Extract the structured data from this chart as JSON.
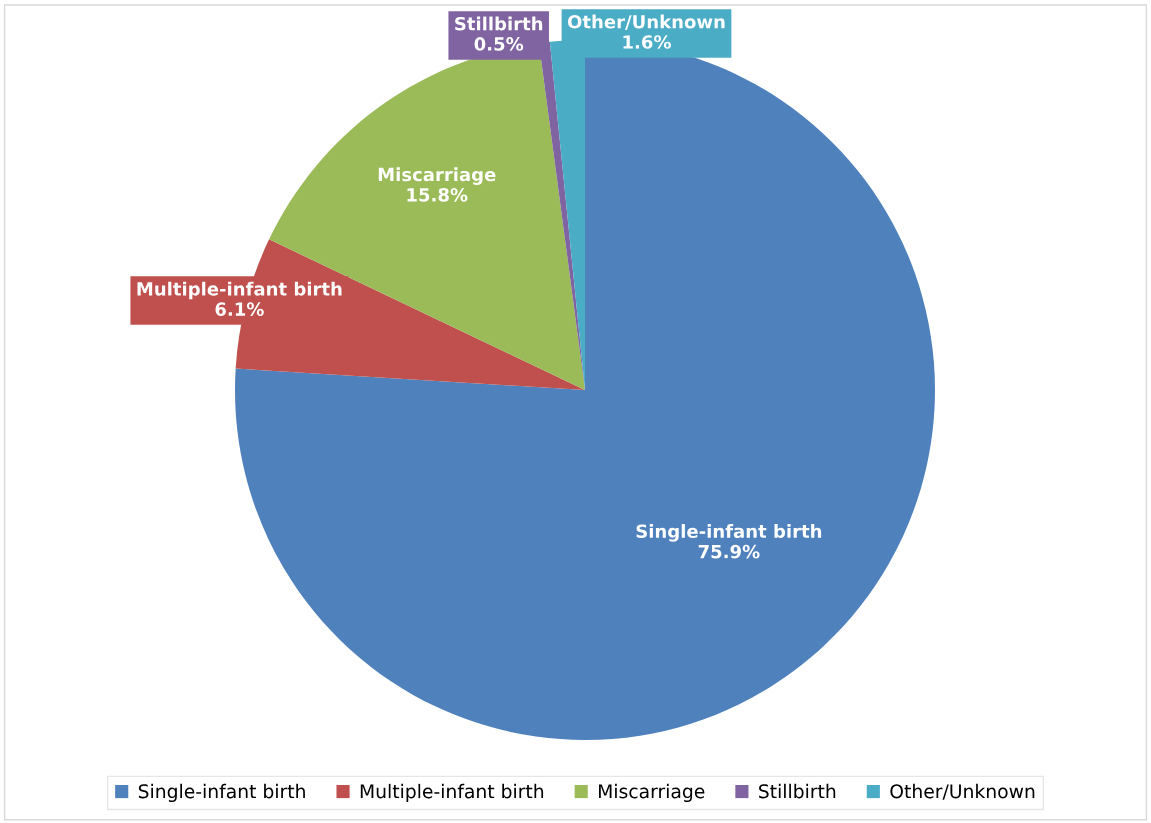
{
  "chart_data": {
    "type": "pie",
    "categories": [
      "Single-infant birth",
      "Multiple-infant birth",
      "Miscarriage",
      "Stillbirth",
      "Other/Unknown"
    ],
    "values": [
      75.9,
      6.1,
      15.8,
      0.5,
      1.6
    ],
    "value_labels": [
      "75.9%",
      "6.1%",
      "15.8%",
      "0.5%",
      "1.6%"
    ],
    "colors": [
      "#4f81bd",
      "#c0504d",
      "#9bbb59",
      "#8064a2",
      "#4bacc6"
    ],
    "legend": "bottom"
  }
}
